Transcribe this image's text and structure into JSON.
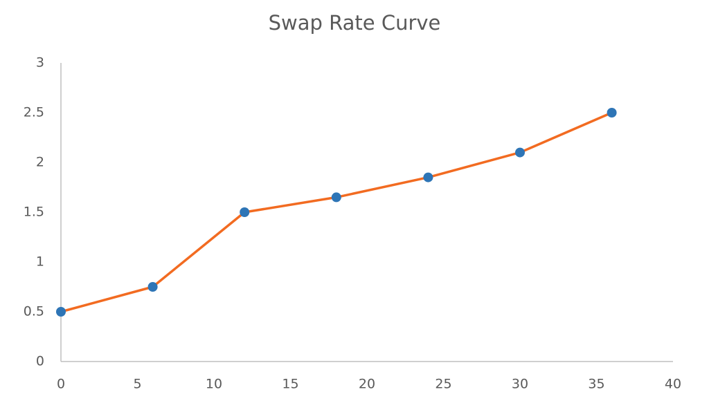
{
  "chart_data": {
    "type": "line",
    "title": "Swap Rate Curve",
    "x": [
      0,
      6,
      12,
      18,
      24,
      30,
      36
    ],
    "values": [
      0.5,
      0.75,
      1.5,
      1.65,
      1.85,
      2.1,
      2.5
    ],
    "color": "#f26b21",
    "marker_color": "#2e75b6",
    "xlim": [
      0,
      40
    ],
    "xticks": [
      0,
      5,
      10,
      15,
      20,
      25,
      30,
      35,
      40
    ],
    "ylim": [
      0,
      3
    ],
    "yticks": [
      0,
      0.5,
      1,
      1.5,
      2,
      2.5,
      3
    ],
    "grid": false
  }
}
